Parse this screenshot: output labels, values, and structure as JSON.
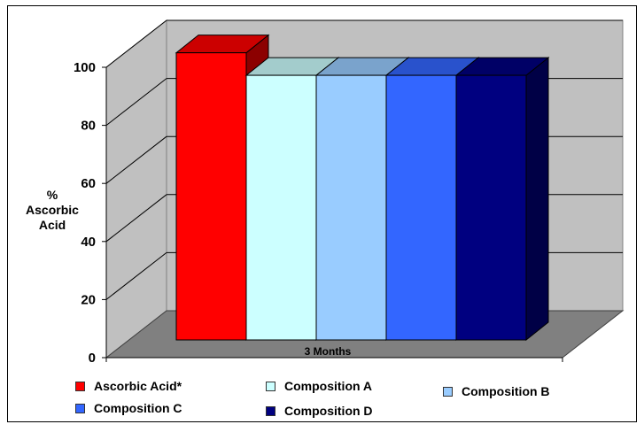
{
  "chart_data": {
    "type": "bar",
    "categories": [
      "3 Months"
    ],
    "series": [
      {
        "name": "Ascorbic Acid*",
        "values": [
          102
        ],
        "color": "#ff0000"
      },
      {
        "name": "Composition A",
        "values": [
          94
        ],
        "color": "#ccffff"
      },
      {
        "name": "Composition B",
        "values": [
          94
        ],
        "color": "#99ccff"
      },
      {
        "name": "Composition C",
        "values": [
          94
        ],
        "color": "#3366ff"
      },
      {
        "name": "Composition D",
        "values": [
          94
        ],
        "color": "#000080"
      }
    ],
    "title": "",
    "xlabel": "",
    "ylabel": "% Ascorbic Acid",
    "ylabel_lines": [
      "%",
      "Ascorbic",
      "Acid"
    ],
    "ylim": [
      0,
      100
    ],
    "yticks": [
      0,
      20,
      40,
      60,
      80,
      100
    ],
    "grid": true,
    "three_d": true,
    "legend_position": "bottom",
    "wall_color": "#c0c0c0",
    "floor_color": "#808080"
  }
}
